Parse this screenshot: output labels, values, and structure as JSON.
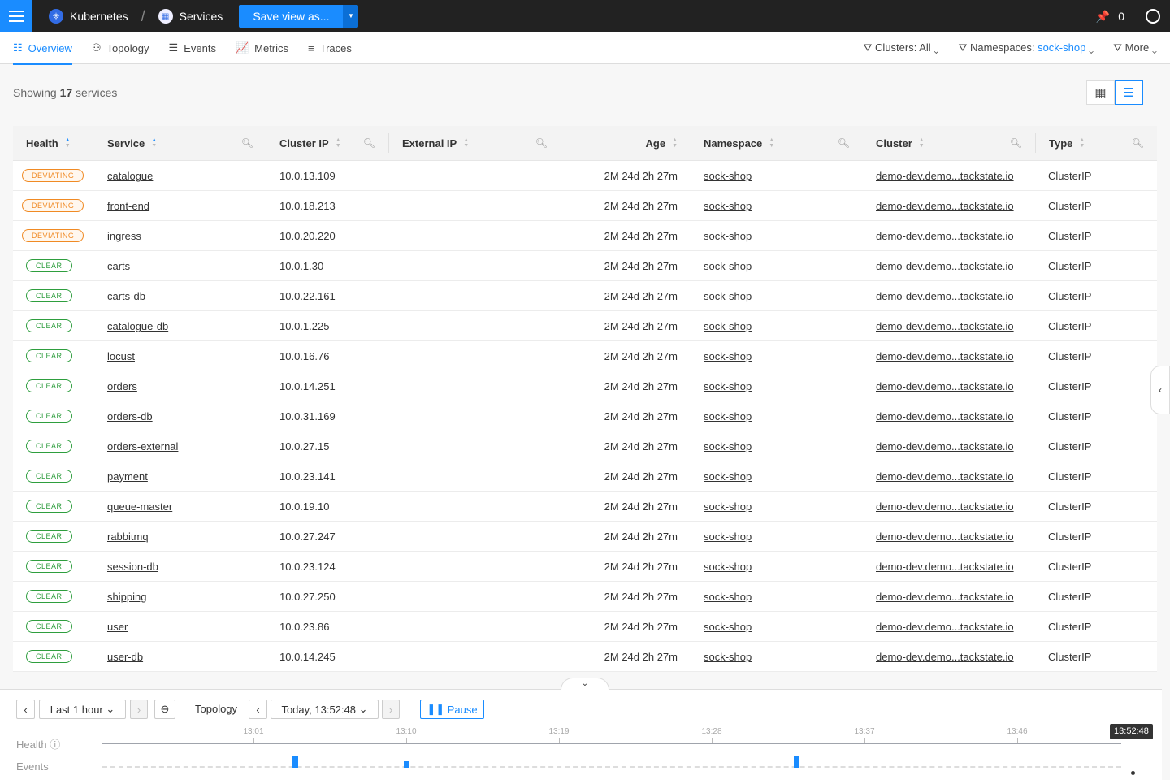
{
  "topbar": {
    "breadcrumb": [
      "Kubernetes",
      "Services"
    ],
    "save_label": "Save view as...",
    "pins": "0"
  },
  "tabs": [
    "Overview",
    "Topology",
    "Events",
    "Metrics",
    "Traces"
  ],
  "filters": {
    "clusters_label": "Clusters: All",
    "namespaces_label": "Namespaces: ",
    "namespaces_value": "sock-shop",
    "more_label": "More"
  },
  "summary": {
    "prefix": "Showing ",
    "count": "17",
    "suffix": " services"
  },
  "columns": [
    "Health",
    "Service",
    "Cluster IP",
    "External IP",
    "Age",
    "Namespace",
    "Cluster",
    "Type"
  ],
  "rows": [
    {
      "health": "DEVIATING",
      "service": "catalogue",
      "ip": "10.0.13.109"
    },
    {
      "health": "DEVIATING",
      "service": "front-end",
      "ip": "10.0.18.213"
    },
    {
      "health": "DEVIATING",
      "service": "ingress",
      "ip": "10.0.20.220"
    },
    {
      "health": "CLEAR",
      "service": "carts",
      "ip": "10.0.1.30"
    },
    {
      "health": "CLEAR",
      "service": "carts-db",
      "ip": "10.0.22.161"
    },
    {
      "health": "CLEAR",
      "service": "catalogue-db",
      "ip": "10.0.1.225"
    },
    {
      "health": "CLEAR",
      "service": "locust",
      "ip": "10.0.16.76"
    },
    {
      "health": "CLEAR",
      "service": "orders",
      "ip": "10.0.14.251"
    },
    {
      "health": "CLEAR",
      "service": "orders-db",
      "ip": "10.0.31.169"
    },
    {
      "health": "CLEAR",
      "service": "orders-external",
      "ip": "10.0.27.15"
    },
    {
      "health": "CLEAR",
      "service": "payment",
      "ip": "10.0.23.141"
    },
    {
      "health": "CLEAR",
      "service": "queue-master",
      "ip": "10.0.19.10"
    },
    {
      "health": "CLEAR",
      "service": "rabbitmq",
      "ip": "10.0.27.247"
    },
    {
      "health": "CLEAR",
      "service": "session-db",
      "ip": "10.0.23.124"
    },
    {
      "health": "CLEAR",
      "service": "shipping",
      "ip": "10.0.27.250"
    },
    {
      "health": "CLEAR",
      "service": "user",
      "ip": "10.0.23.86"
    },
    {
      "health": "CLEAR",
      "service": "user-db",
      "ip": "10.0.14.245"
    }
  ],
  "row_common": {
    "external_ip": "",
    "age": "2M 24d 2h 27m",
    "namespace": "sock-shop",
    "cluster": "demo-dev.demo...tackstate.io",
    "type": "ClusterIP"
  },
  "timeline": {
    "range": "Last 1 hour",
    "mode": "Topology",
    "time": "Today, 13:52:48",
    "pause": "Pause",
    "health_label": "Health",
    "events_label": "Events",
    "ticks": [
      "13:01",
      "13:10",
      "13:19",
      "13:28",
      "13:37",
      "13:46"
    ],
    "now": "13:52:48",
    "events": [
      {
        "time": "13:03:26",
        "size": "large"
      },
      {
        "time": "13:10:00",
        "size": "small"
      },
      {
        "time": "13:33:00",
        "size": "large"
      }
    ]
  },
  "colors": {
    "accent": "#1a8cff",
    "deviating": "#f08a24",
    "clear": "#2e9e3e"
  }
}
